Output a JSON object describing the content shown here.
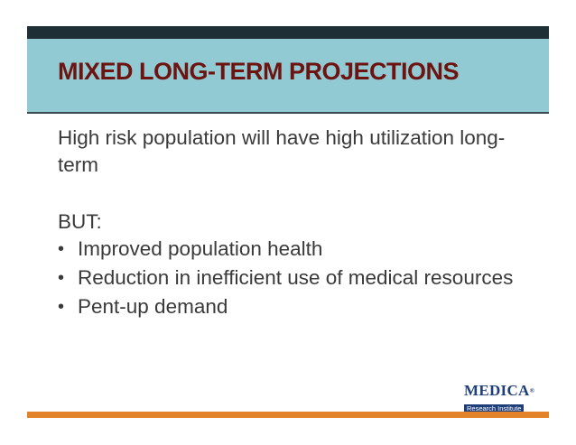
{
  "slide": {
    "title": "MIXED LONG-TERM PROJECTIONS",
    "intro": "High risk population will have high utilization long-term",
    "contrast_label": "BUT:",
    "bullets": [
      "Improved population health",
      "Reduction in inefficient use of medical resources",
      "Pent-up demand"
    ]
  },
  "logo": {
    "name": "MEDICA",
    "reg_mark": "®",
    "subtitle": "Research Institute"
  },
  "colors": {
    "top_bar": "#1e2f35",
    "title_band": "#91cad3",
    "title_text": "#6e1410",
    "bottom_bar": "#e2832c",
    "logo_blue": "#1f3f7a"
  }
}
